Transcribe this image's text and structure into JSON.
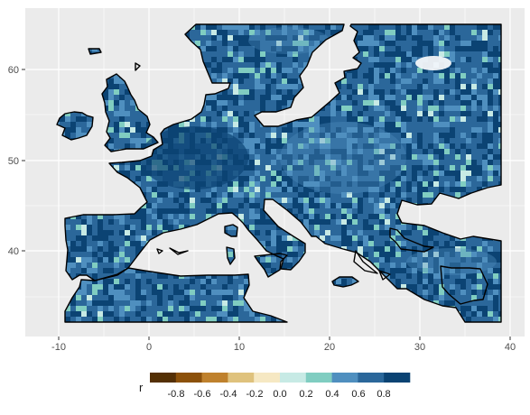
{
  "map": {
    "x_ticks": [
      -10,
      0,
      10,
      20,
      30,
      40
    ],
    "y_ticks": [
      40,
      50,
      60
    ],
    "x_range": [
      -13.5,
      41
    ],
    "y_range": [
      31,
      66.5
    ],
    "background": "#ebebeb",
    "grid_color": "#ffffff",
    "land_base_color": "#2b679a"
  },
  "legend": {
    "title": "r",
    "labels": [
      "-0.8",
      "-0.6",
      "-0.4",
      "-0.2",
      "0.0",
      "0.2",
      "0.4",
      "0.6",
      "0.8"
    ],
    "colors": [
      "#543005",
      "#8c510a",
      "#bf812d",
      "#dfc27d",
      "#f6e8c3",
      "#c7eae5",
      "#80cdc1",
      "#4f8fbf",
      "#2b679a",
      "#0b4373"
    ]
  }
}
